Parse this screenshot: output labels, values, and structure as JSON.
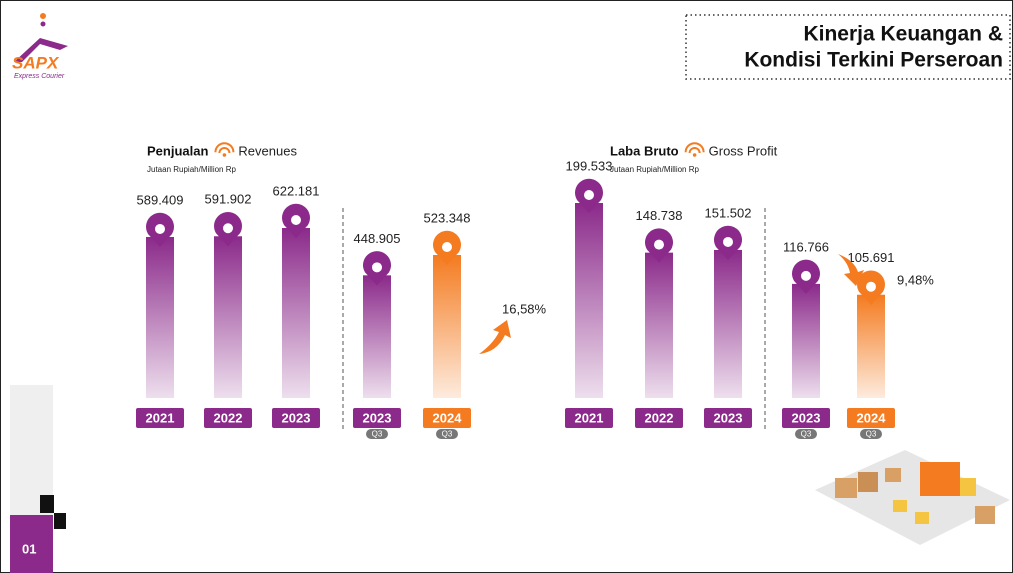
{
  "header": {
    "logo": "SAPX",
    "logo_tagline": "Express Courier",
    "title_lines": [
      "Kinerja Keuangan &",
      "Kondisi Terkini Perseroan"
    ],
    "page_number": "01"
  },
  "chart_data": [
    {
      "type": "bar",
      "title": "Penjualan",
      "title_en": "Revenues",
      "subtitle": "Jutaan Rupiah/Million Rp",
      "categories": [
        "2021",
        "2022",
        "2023",
        "2023",
        "2024"
      ],
      "sublabels": [
        null,
        null,
        null,
        "Q3",
        "Q3"
      ],
      "values": [
        589409,
        591902,
        622181,
        448905,
        523348
      ],
      "value_labels": [
        "589.409",
        "591.902",
        "622.181",
        "448.905",
        "523.348"
      ],
      "colors": [
        "#8b2a8a",
        "#8b2a8a",
        "#8b2a8a",
        "#8b2a8a",
        "#f47b20"
      ],
      "change": {
        "value": 16.58,
        "label": "16,58%",
        "direction": "up"
      }
    },
    {
      "type": "bar",
      "title": "Laba Bruto",
      "title_en": "Gross Profit",
      "subtitle": "Jutaan Rupiah/Million Rp",
      "categories": [
        "2021",
        "2022",
        "2023",
        "2023",
        "2024"
      ],
      "sublabels": [
        null,
        null,
        null,
        "Q3",
        "Q3"
      ],
      "values": [
        199533,
        148738,
        151502,
        116766,
        105691
      ],
      "value_labels": [
        "199.533",
        "148.738",
        "151.502",
        "116.766",
        "105.691"
      ],
      "colors": [
        "#8b2a8a",
        "#8b2a8a",
        "#8b2a8a",
        "#8b2a8a",
        "#f47b20"
      ],
      "change": {
        "value": 9.48,
        "label": "9,48%",
        "direction": "down"
      }
    }
  ]
}
